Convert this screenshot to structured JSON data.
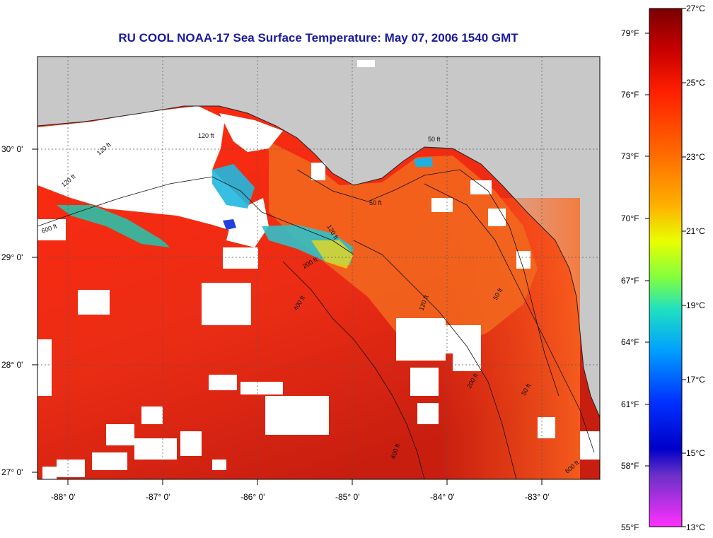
{
  "title": "RU COOL  NOAA-17  Sea Surface Temperature:  May 07, 2006 1540 GMT",
  "map": {
    "lon_labels": [
      "-88° 0'",
      "-87° 0'",
      "-86° 0'",
      "-85° 0'",
      "-84° 0'",
      "-83° 0'"
    ],
    "lat_labels": [
      "30° 0'",
      "29° 0'",
      "28° 0'",
      "27° 0'"
    ],
    "contour_labels": [
      "120 ft",
      "120 ft",
      "120 ft",
      "50 ft",
      "50 ft",
      "120 ft",
      "600 ft",
      "400 ft",
      "50 ft",
      "120 ft",
      "200 ft",
      "400 ft",
      "50 ft",
      "600 ft",
      "200 ft"
    ],
    "colors": {
      "land": "#c8c8c8",
      "cloud": "#ffffff",
      "warm_sea": "#e8321a",
      "grid": "#555555"
    }
  },
  "colorbar": {
    "fahrenheit_labels": [
      "79°F",
      "76°F",
      "73°F",
      "70°F",
      "67°F",
      "64°F",
      "61°F",
      "58°F",
      "55°F"
    ],
    "celsius_labels": [
      "27°C",
      "25°C",
      "23°C",
      "21°C",
      "19°C",
      "17°C",
      "15°C",
      "13°C"
    ],
    "range_c": [
      13,
      27
    ],
    "range_f": [
      55,
      80.6
    ]
  }
}
